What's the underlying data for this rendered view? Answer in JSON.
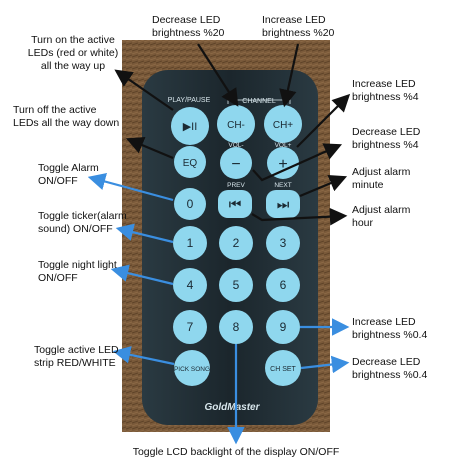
{
  "annotations": {
    "decrease_20": "Decrease LED\nbrightness %20",
    "increase_20": "Increase LED\nbrightness %20",
    "turn_on": "Turn on the active\nLEDs (red or white)\nall the way up",
    "increase_4": "Increase LED\nbrightness %4",
    "turn_off": "Turn off the active\nLEDs all the way down",
    "decrease_4": "Decrease LED\nbrightness %4",
    "toggle_alarm": "Toggle Alarm\nON/OFF",
    "adjust_minute": "Adjust alarm\nminute",
    "toggle_ticker": "Toggle ticker(alarm\nsound) ON/OFF",
    "adjust_hour": "Adjust alarm\nhour",
    "toggle_night": "Toggle night light\nON/OFF",
    "increase_04": "Increase LED\nbrightness %0.4",
    "toggle_strip": "Toggle active LED\nstrip RED/WHITE",
    "decrease_04": "Decrease LED\nbrightness %0.4",
    "toggle_backlight": "Toggle LCD backlight of the display ON/OFF"
  },
  "remote": {
    "play_pause": "PLAY/PAUSE",
    "channel": "CHANNEL",
    "vol_minus": "VOL-",
    "vol_plus": "VOL+",
    "prev": "PREV",
    "next": "NEXT",
    "btn_play": "▶II",
    "btn_ch_minus": "CH-",
    "btn_ch_plus": "CH+",
    "btn_eq": "EQ",
    "btn_minus": "−",
    "btn_plus": "+",
    "btn_0": "0",
    "btn_prev": "⏮",
    "btn_next": "⏭",
    "btn_1": "1",
    "btn_2": "2",
    "btn_3": "3",
    "btn_4": "4",
    "btn_5": "5",
    "btn_6": "6",
    "btn_7": "7",
    "btn_8": "8",
    "btn_9": "9",
    "btn_pick_song": "PICK SONG",
    "btn_ch_set": "CH SET",
    "brand": "GoldMaster"
  },
  "colors": {
    "arrow_black": "#111111",
    "arrow_blue": "#3a8ee0",
    "button_fill": "#8fd7ee",
    "remote_body": "#1e2a30",
    "background_texture": "#7a5a3a"
  }
}
